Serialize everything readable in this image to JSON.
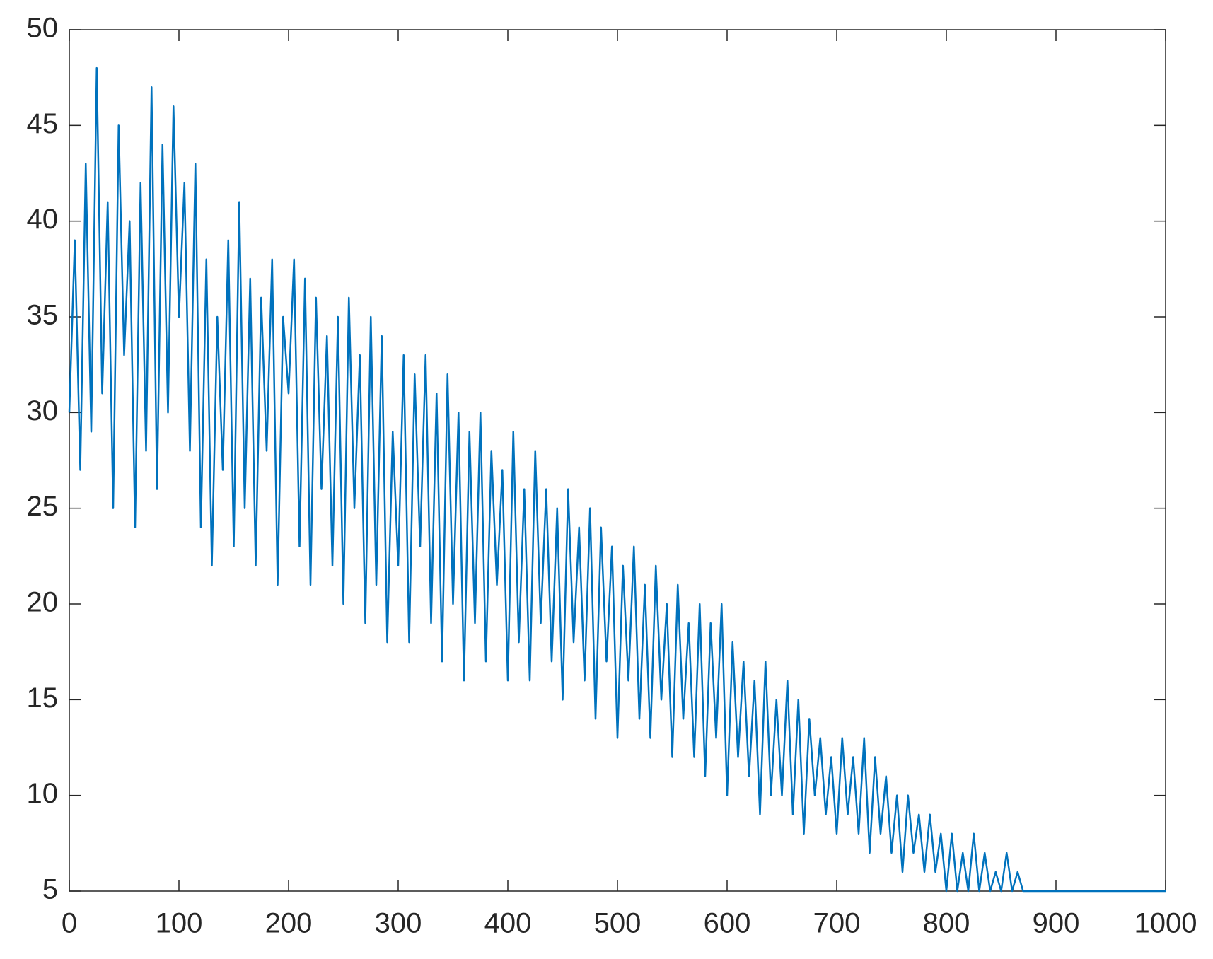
{
  "chart_data": {
    "type": "line",
    "x": [
      0,
      5,
      10,
      15,
      20,
      25,
      30,
      35,
      40,
      45,
      50,
      55,
      60,
      65,
      70,
      75,
      80,
      85,
      90,
      95,
      100,
      105,
      110,
      115,
      120,
      125,
      130,
      135,
      140,
      145,
      150,
      155,
      160,
      165,
      170,
      175,
      180,
      185,
      190,
      195,
      200,
      205,
      210,
      215,
      220,
      225,
      230,
      235,
      240,
      245,
      250,
      255,
      260,
      265,
      270,
      275,
      280,
      285,
      290,
      295,
      300,
      305,
      310,
      315,
      320,
      325,
      330,
      335,
      340,
      345,
      350,
      355,
      360,
      365,
      370,
      375,
      380,
      385,
      390,
      395,
      400,
      405,
      410,
      415,
      420,
      425,
      430,
      435,
      440,
      445,
      450,
      455,
      460,
      465,
      470,
      475,
      480,
      485,
      490,
      495,
      500,
      505,
      510,
      515,
      520,
      525,
      530,
      535,
      540,
      545,
      550,
      555,
      560,
      565,
      570,
      575,
      580,
      585,
      590,
      595,
      600,
      605,
      610,
      615,
      620,
      625,
      630,
      635,
      640,
      645,
      650,
      655,
      660,
      665,
      670,
      675,
      680,
      685,
      690,
      695,
      700,
      705,
      710,
      715,
      720,
      725,
      730,
      735,
      740,
      745,
      750,
      755,
      760,
      765,
      770,
      775,
      780,
      785,
      790,
      795,
      800,
      805,
      810,
      815,
      820,
      825,
      830,
      835,
      840,
      845,
      850,
      855,
      860,
      865,
      870,
      875,
      880,
      885,
      890,
      895,
      900,
      905,
      910,
      915,
      920,
      925,
      930,
      935,
      940,
      945,
      950,
      955,
      960,
      965,
      970,
      975,
      980,
      985,
      990,
      995,
      1000
    ],
    "series": [
      {
        "color": "#0072bd",
        "values": [
          30,
          39,
          27,
          43,
          29,
          48,
          31,
          41,
          25,
          45,
          33,
          40,
          24,
          42,
          28,
          47,
          26,
          44,
          30,
          46,
          35,
          42,
          28,
          43,
          24,
          38,
          22,
          35,
          27,
          39,
          23,
          41,
          25,
          37,
          22,
          36,
          28,
          38,
          21,
          35,
          31,
          38,
          23,
          37,
          21,
          36,
          26,
          34,
          22,
          35,
          20,
          36,
          25,
          33,
          19,
          35,
          21,
          34,
          18,
          29,
          22,
          33,
          18,
          32,
          23,
          33,
          19,
          31,
          17,
          32,
          20,
          30,
          16,
          29,
          19,
          30,
          17,
          28,
          21,
          27,
          16,
          29,
          18,
          26,
          16,
          28,
          19,
          26,
          17,
          25,
          15,
          26,
          18,
          24,
          16,
          25,
          14,
          24,
          17,
          23,
          13,
          22,
          16,
          23,
          14,
          21,
          13,
          22,
          15,
          20,
          12,
          21,
          14,
          19,
          12,
          20,
          11,
          19,
          13,
          20,
          10,
          18,
          12,
          17,
          11,
          16,
          9,
          17,
          10,
          15,
          10,
          16,
          9,
          15,
          8,
          14,
          10,
          13,
          9,
          12,
          8,
          13,
          9,
          12,
          8,
          13,
          7,
          12,
          8,
          11,
          7,
          10,
          6,
          10,
          7,
          9,
          6,
          9,
          6,
          8,
          5,
          8,
          5,
          7,
          5,
          8,
          5,
          7,
          5,
          6,
          5,
          7,
          5,
          6,
          5,
          5,
          5,
          5,
          5,
          5,
          5,
          5,
          5,
          5,
          5,
          5,
          5,
          5,
          5,
          5,
          5,
          5,
          5,
          5,
          5,
          5,
          5,
          5,
          5,
          5,
          5
        ]
      }
    ],
    "xlim": [
      0,
      1000
    ],
    "xticks": [
      0,
      100,
      200,
      300,
      400,
      500,
      600,
      700,
      800,
      900,
      1000
    ],
    "ylim": [
      5,
      50
    ],
    "yticks": [
      5,
      10,
      15,
      20,
      25,
      30,
      35,
      40,
      45,
      50
    ]
  }
}
